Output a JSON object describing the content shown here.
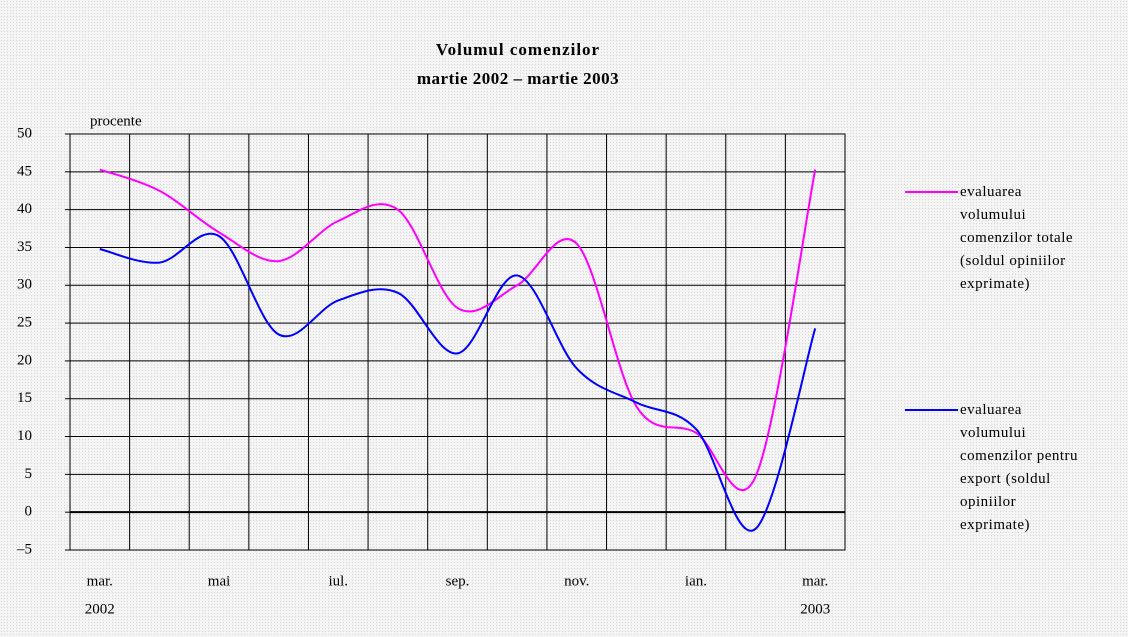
{
  "chart_data": {
    "type": "line",
    "title": "Volumul comenzilor",
    "subtitle": "martie 2002 – martie 2003",
    "y_label": "procente",
    "categories": [
      "mar.",
      null,
      "mai",
      null,
      "iul.",
      null,
      "sep.",
      null,
      "nov.",
      null,
      "ian.",
      null,
      "mar."
    ],
    "category_years": [
      "2002",
      null,
      null,
      null,
      null,
      null,
      null,
      null,
      null,
      null,
      null,
      null,
      "2003"
    ],
    "series": [
      {
        "name": "evaluarea volumului comenzilor totale (soldul opiniilor exprimate)",
        "color": "#ff00ff",
        "values": [
          45.3,
          42.5,
          37,
          33.2,
          38.5,
          40,
          27,
          30,
          35.5,
          14,
          10.5,
          4.7,
          45.3
        ]
      },
      {
        "name": "evaluarea volumului comenzilor pentru export (soldul opiniilor exprimate)",
        "color": "#0000ff",
        "values": [
          34.8,
          33,
          36.5,
          23.5,
          28,
          29,
          21,
          31.3,
          19,
          14.5,
          11,
          -2.2,
          24.3
        ]
      }
    ],
    "ylim": [
      -5,
      50
    ],
    "yticks": [
      {
        "value": -5,
        "label": "–5"
      },
      0,
      5,
      10,
      15,
      20,
      25,
      30,
      35,
      40,
      45,
      50
    ],
    "grid": true
  }
}
